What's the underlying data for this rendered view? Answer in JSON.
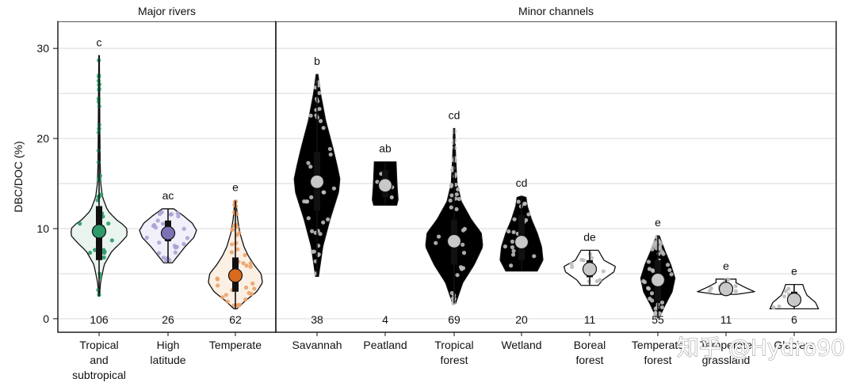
{
  "chart_data": {
    "type": "violin",
    "ylabel": "DBC/DOC (%)",
    "ylim": [
      -1.5,
      33
    ],
    "yticks": [
      0,
      10,
      20,
      30
    ],
    "grid": true,
    "panels": [
      {
        "title": "Major rivers",
        "groups": [
          {
            "label_lines": [
              "Tropical",
              "and",
              "subtropical"
            ],
            "n": "106",
            "letter": "c",
            "median": 9.7,
            "min": 2.5,
            "max": 29.2,
            "q1": 6.5,
            "q3": 12.5,
            "fill": "#2e9a6a",
            "points": "#2e9a6a",
            "violin_fill": "#e9f4ee",
            "shape": [
              [
                2.5,
                0.02
              ],
              [
                4,
                0.05
              ],
              [
                6,
                0.18
              ],
              [
                7.5,
                0.45
              ],
              [
                8.5,
                0.78
              ],
              [
                9.3,
                1.0
              ],
              [
                10.2,
                0.95
              ],
              [
                11,
                0.6
              ],
              [
                12,
                0.3
              ],
              [
                13.5,
                0.12
              ],
              [
                15,
                0.06
              ],
              [
                17,
                0.04
              ],
              [
                20,
                0.03
              ],
              [
                25,
                0.02
              ],
              [
                29.2,
                0.01
              ]
            ]
          },
          {
            "label_lines": [
              "High",
              "latitude"
            ],
            "n": "26",
            "letter": "ac",
            "median": 9.5,
            "min": 6.2,
            "max": 12.2,
            "q1": 8.6,
            "q3": 10.9,
            "fill": "#7b72b5",
            "points": "#a9a2d3",
            "violin_fill": "#f1effa",
            "shape": [
              [
                6.2,
                0.15
              ],
              [
                7,
                0.35
              ],
              [
                8,
                0.6
              ],
              [
                9,
                0.9
              ],
              [
                9.8,
                1.0
              ],
              [
                10.6,
                0.85
              ],
              [
                11.4,
                0.55
              ],
              [
                12.2,
                0.2
              ]
            ]
          },
          {
            "label_lines": [
              "Temperate"
            ],
            "n": "62",
            "letter": "e",
            "median": 4.8,
            "min": 1.1,
            "max": 13.1,
            "q1": 3.0,
            "q3": 6.8,
            "fill": "#d96b1f",
            "points": "#eaa26a",
            "violin_fill": "#fcefe3",
            "shape": [
              [
                1.1,
                0.05
              ],
              [
                2,
                0.35
              ],
              [
                3,
                0.75
              ],
              [
                4,
                0.95
              ],
              [
                5,
                0.9
              ],
              [
                6,
                0.65
              ],
              [
                7,
                0.45
              ],
              [
                8,
                0.3
              ],
              [
                9.5,
                0.16
              ],
              [
                11,
                0.08
              ],
              [
                13.1,
                0.02
              ]
            ]
          }
        ]
      },
      {
        "title": "Minor channels",
        "groups": [
          {
            "label_lines": [
              "Savannah"
            ],
            "n": "38",
            "letter": "b",
            "median": 15.2,
            "min": 4.7,
            "max": 27.1,
            "q1": 12.0,
            "q3": 18.5,
            "fill": "#c8c8c8",
            "points": "#bdbdbd",
            "violin_fill": "#000000",
            "shape": [
              [
                4.7,
                0.05
              ],
              [
                8,
                0.2
              ],
              [
                11,
                0.45
              ],
              [
                14,
                0.75
              ],
              [
                15.5,
                0.8
              ],
              [
                17,
                0.7
              ],
              [
                19,
                0.55
              ],
              [
                22,
                0.3
              ],
              [
                25,
                0.12
              ],
              [
                27.1,
                0.03
              ]
            ]
          },
          {
            "label_lines": [
              "Peatland"
            ],
            "n": "4",
            "letter": "ab",
            "median": 14.8,
            "min": 12.6,
            "max": 17.4,
            "q1": 13.5,
            "q3": 16.5,
            "fill": "#c8c8c8",
            "points": "#bdbdbd",
            "violin_fill": "#000000",
            "shape": [
              [
                12.6,
                0.4
              ],
              [
                13.2,
                0.45
              ],
              [
                14.5,
                0.42
              ],
              [
                15.8,
                0.4
              ],
              [
                17.4,
                0.38
              ]
            ]
          },
          {
            "label_lines": [
              "Tropical",
              "forest"
            ],
            "n": "69",
            "letter": "cd",
            "median": 8.6,
            "min": 1.7,
            "max": 21.1,
            "q1": 6.0,
            "q3": 11.0,
            "fill": "#c8c8c8",
            "points": "#bdbdbd",
            "violin_fill": "#000000",
            "shape": [
              [
                1.7,
                0.05
              ],
              [
                4,
                0.3
              ],
              [
                6,
                0.7
              ],
              [
                8,
                1.0
              ],
              [
                9.5,
                0.95
              ],
              [
                11,
                0.6
              ],
              [
                13,
                0.25
              ],
              [
                15,
                0.1
              ],
              [
                18,
                0.05
              ],
              [
                21.1,
                0.02
              ]
            ]
          },
          {
            "label_lines": [
              "Wetland"
            ],
            "n": "20",
            "letter": "cd",
            "median": 8.5,
            "min": 5.3,
            "max": 13.6,
            "q1": 6.5,
            "q3": 11.5,
            "fill": "#c8c8c8",
            "points": "#bdbdbd",
            "violin_fill": "#000000",
            "shape": [
              [
                5.3,
                0.55
              ],
              [
                6.5,
                0.75
              ],
              [
                8,
                0.7
              ],
              [
                9.5,
                0.55
              ],
              [
                11,
                0.35
              ],
              [
                12.5,
                0.2
              ],
              [
                13.6,
                0.15
              ]
            ]
          },
          {
            "label_lines": [
              "Boreal",
              "forest"
            ],
            "n": "11",
            "letter": "de",
            "median": 5.5,
            "min": 3.7,
            "max": 7.6,
            "q1": 4.6,
            "q3": 6.5,
            "fill": "#c8c8c8",
            "points": "#bdbdbd",
            "violin_fill": "#ffffff",
            "shape": [
              [
                3.7,
                0.3
              ],
              [
                4.3,
                0.45
              ],
              [
                5.2,
                0.85
              ],
              [
                5.8,
                0.9
              ],
              [
                6.5,
                0.5
              ],
              [
                7.6,
                0.3
              ]
            ]
          },
          {
            "label_lines": [
              "Temperate",
              "forest"
            ],
            "n": "55",
            "letter": "e",
            "median": 4.3,
            "min": 0.1,
            "max": 9.2,
            "q1": 2.0,
            "q3": 6.5,
            "fill": "#c8c8c8",
            "points": "#bdbdbd",
            "violin_fill": "#000000",
            "shape": [
              [
                0.1,
                0.05
              ],
              [
                1.5,
                0.25
              ],
              [
                3,
                0.5
              ],
              [
                4.5,
                0.6
              ],
              [
                6,
                0.45
              ],
              [
                7.5,
                0.25
              ],
              [
                9.2,
                0.05
              ]
            ]
          },
          {
            "label_lines": [
              "Temperate",
              "grassland"
            ],
            "n": "11",
            "letter": "e",
            "median": 3.3,
            "min": 2.7,
            "max": 4.4,
            "q1": 3.0,
            "q3": 3.8,
            "fill": "#c8c8c8",
            "points": "#bdbdbd",
            "violin_fill": "#ffffff",
            "shape": [
              [
                2.7,
                0.35
              ],
              [
                3.0,
                1.0
              ],
              [
                3.5,
                0.65
              ],
              [
                4.0,
                0.35
              ],
              [
                4.4,
                0.35
              ]
            ]
          },
          {
            "label_lines": [
              "Glaciers"
            ],
            "n": "6",
            "letter": "e",
            "median": 2.1,
            "min": 1.1,
            "max": 3.8,
            "q1": 1.6,
            "q3": 3.0,
            "fill": "#c8c8c8",
            "points": "#bdbdbd",
            "violin_fill": "#ffffff",
            "shape": [
              [
                1.1,
                0.85
              ],
              [
                1.8,
                0.75
              ],
              [
                2.6,
                0.45
              ],
              [
                3.3,
                0.35
              ],
              [
                3.8,
                0.3
              ]
            ]
          }
        ]
      }
    ]
  },
  "watermark": "知乎 @Hydro90"
}
